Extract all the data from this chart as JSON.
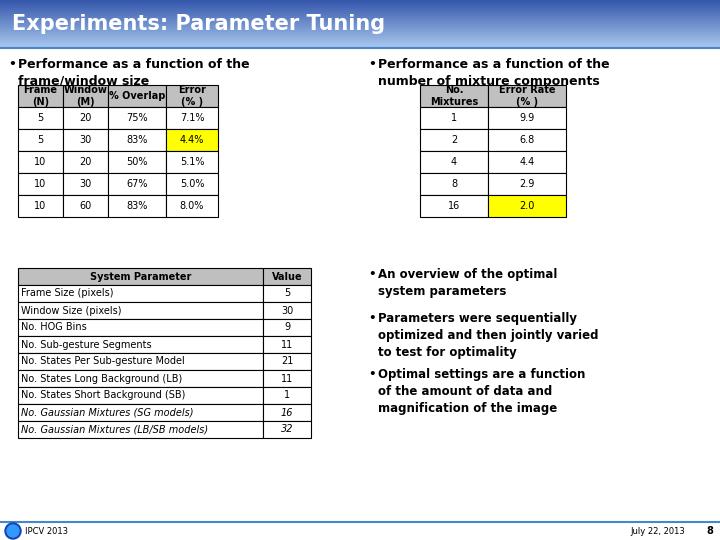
{
  "title": "Experiments: Parameter Tuning",
  "title_bg_top": "#3355aa",
  "title_bg_bottom": "#aac8ee",
  "slide_bg": "#ffffff",
  "body_bg": "#ffffff",
  "bullet1_line1": "Performance as a function of the",
  "bullet1_line2": "frame/window size",
  "bullet2_line1": "Performance as a function of the",
  "bullet2_line2": "number of mixture components",
  "table1_headers": [
    "Frame\n(N)",
    "Window\n(M)",
    "% Overlap",
    "Error\n(% )"
  ],
  "table1_data": [
    [
      "5",
      "20",
      "75%",
      "7.1%"
    ],
    [
      "5",
      "30",
      "83%",
      "4.4%"
    ],
    [
      "10",
      "20",
      "50%",
      "5.1%"
    ],
    [
      "10",
      "30",
      "67%",
      "5.0%"
    ],
    [
      "10",
      "60",
      "83%",
      "8.0%"
    ]
  ],
  "table1_highlight_row": 1,
  "table1_highlight_col": 3,
  "highlight_color": "#ffff00",
  "table2_headers": [
    "No.\nMixtures",
    "Error Rate\n(% )"
  ],
  "table2_data": [
    [
      "1",
      "9.9"
    ],
    [
      "2",
      "6.8"
    ],
    [
      "4",
      "4.4"
    ],
    [
      "8",
      "2.9"
    ],
    [
      "16",
      "2.0"
    ]
  ],
  "table2_highlight_row": 4,
  "table2_highlight_col": 1,
  "table3_col_header_bg": "#bfbfbf",
  "table3_headers": [
    "System Parameter",
    "Value"
  ],
  "table3_data": [
    [
      "Frame Size (pixels)",
      "5"
    ],
    [
      "Window Size (pixels)",
      "30"
    ],
    [
      "No. HOG Bins",
      "9"
    ],
    [
      "No. Sub-gesture Segments",
      "11"
    ],
    [
      "No. States Per Sub-gesture Model",
      "21"
    ],
    [
      "No. States Long Background (LB)",
      "11"
    ],
    [
      "No. States Short Background (SB)",
      "1"
    ],
    [
      "No. Gaussian Mixtures (SG models)",
      "16"
    ],
    [
      "No. Gaussian Mixtures (LB/SB models)",
      "32"
    ]
  ],
  "table3_italic_rows": [
    7,
    8
  ],
  "bullet3_line1": "An overview of the optimal",
  "bullet3_line2": "system parameters",
  "bullet4_line1": "Parameters were sequentially",
  "bullet4_line2": "optimized and then jointly varied",
  "bullet4_line3": "to test for optimality",
  "bullet5_line1": "Optimal settings are a function",
  "bullet5_line2": "of the amount of data and",
  "bullet5_line3": "magnification of the image",
  "footer_left": "IPCV 2013",
  "footer_right": "July 22, 2013",
  "footer_page": "8",
  "footer_line_color": "#4488cc",
  "table_header_bg": "#c0c0c0",
  "table_border": "#000000"
}
